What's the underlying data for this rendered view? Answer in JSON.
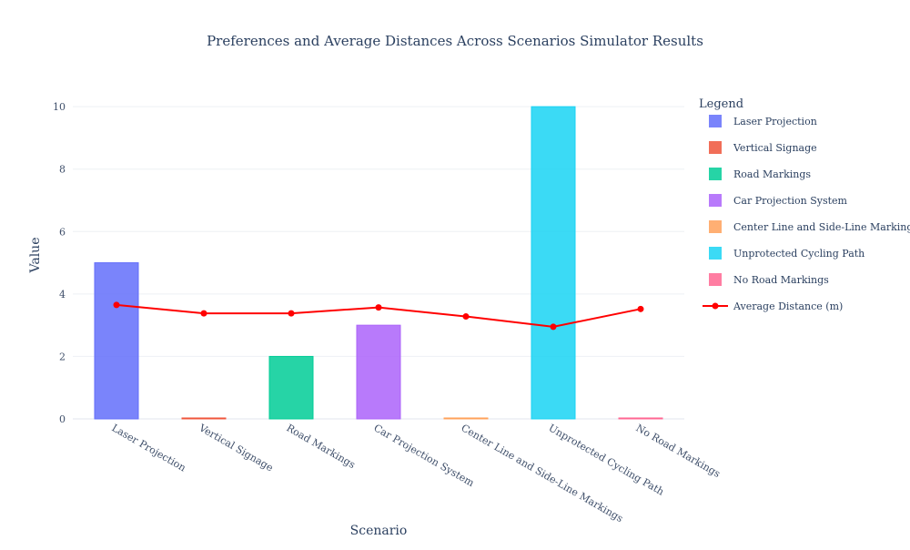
{
  "chart_data": {
    "type": "bar",
    "title": "Preferences and Average Distances Across Scenarios Simulator Results",
    "xlabel": "Scenario",
    "ylabel": "Value",
    "ylim": [
      0,
      10.5
    ],
    "yticks": [
      0,
      2,
      4,
      6,
      8,
      10
    ],
    "grid": true,
    "categories": [
      "Laser Projection",
      "Vertical Signage",
      "Road Markings",
      "Car Projection System",
      "Center Line and Side-Line Markings",
      "Unprotected Cycling Path",
      "No Road Markings"
    ],
    "bars": [
      {
        "name": "Laser Projection",
        "value": 5,
        "color": "#636efa"
      },
      {
        "name": "Vertical Signage",
        "value": 0,
        "color": "#ef553b"
      },
      {
        "name": "Road Markings",
        "value": 2,
        "color": "#00cc96"
      },
      {
        "name": "Car Projection System",
        "value": 3,
        "color": "#ab63fa"
      },
      {
        "name": "Center Line and Side-Line Markings",
        "value": 0,
        "color": "#ffa15a"
      },
      {
        "name": "Unprotected Cycling Path",
        "value": 10,
        "color": "#19d3f3"
      },
      {
        "name": "No Road Markings",
        "value": 0,
        "color": "#ff6692"
      }
    ],
    "line": {
      "name": "Average Distance (m)",
      "color": "#ff0000",
      "values": [
        3.65,
        3.38,
        3.38,
        3.57,
        3.28,
        2.95,
        3.52
      ]
    },
    "legend": {
      "title": "Legend",
      "placement": "right"
    }
  }
}
